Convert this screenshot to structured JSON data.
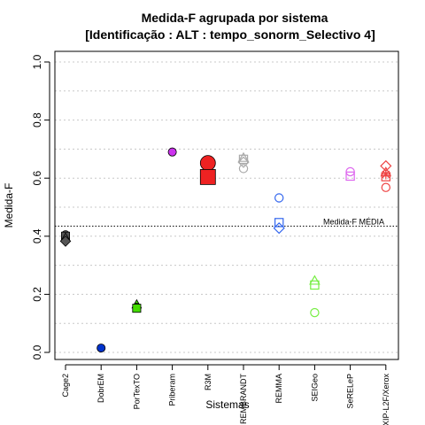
{
  "chart_data": {
    "type": "scatter",
    "title": "Medida-F agrupada por sistema",
    "subtitle": "[Identificação : ALT : tempo_sonorm_Selectivo 4]",
    "xlabel": "Sistemas",
    "ylabel": "Medida-F",
    "ylim": [
      0,
      1
    ],
    "yticks": [
      "0.0",
      "0.2",
      "0.4",
      "0.6",
      "0.8",
      "1.0"
    ],
    "grid": "horizontal dotted",
    "categories": [
      "Cage2",
      "DobrEM",
      "PorTexTO",
      "Priberam",
      "R3M",
      "REMBRANDT",
      "REMMA",
      "SEIGeo",
      "SeRELeP",
      "XIP-L2F/Xerox"
    ],
    "reference_line": {
      "label": "Medida-F MÉDIA",
      "value": 0.435
    },
    "series": [
      {
        "category": "Cage2",
        "color": "#555555",
        "points": [
          {
            "shape": "circle",
            "filled": true,
            "y": 0.405
          },
          {
            "shape": "square",
            "filled": true,
            "y": 0.4
          },
          {
            "shape": "triangle",
            "filled": true,
            "y": 0.395
          },
          {
            "shape": "diamond",
            "filled": true,
            "y": 0.383
          }
        ]
      },
      {
        "category": "DobrEM",
        "color": "#0033cc",
        "points": [
          {
            "shape": "circle",
            "filled": true,
            "y": 0.015
          }
        ]
      },
      {
        "category": "PorTexTO",
        "color": "#44dd00",
        "points": [
          {
            "shape": "triangle",
            "filled": true,
            "y": 0.165
          },
          {
            "shape": "circle",
            "filled": true,
            "y": 0.155
          },
          {
            "shape": "square",
            "filled": true,
            "y": 0.152
          }
        ]
      },
      {
        "category": "Priberam",
        "color": "#cc33ee",
        "points": [
          {
            "shape": "circle",
            "filled": true,
            "y": 0.69
          }
        ]
      },
      {
        "category": "R3M",
        "color": "#ee2222",
        "points": [
          {
            "shape": "circle",
            "filled": true,
            "big": true,
            "y": 0.652
          },
          {
            "shape": "square",
            "filled": true,
            "big": true,
            "y": 0.604
          }
        ]
      },
      {
        "category": "REMBRANDT",
        "color": "#aaaaaa",
        "points": [
          {
            "shape": "triangle",
            "filled": false,
            "y": 0.67
          },
          {
            "shape": "square",
            "filled": false,
            "y": 0.665
          },
          {
            "shape": "diamond",
            "filled": false,
            "y": 0.655
          },
          {
            "shape": "circle",
            "filled": false,
            "y": 0.633
          }
        ]
      },
      {
        "category": "REMMA",
        "color": "#3366ee",
        "points": [
          {
            "shape": "circle",
            "filled": false,
            "y": 0.532
          },
          {
            "shape": "square",
            "filled": false,
            "y": 0.447
          },
          {
            "shape": "diamond",
            "filled": false,
            "y": 0.428
          }
        ]
      },
      {
        "category": "SEIGeo",
        "color": "#77ee44",
        "points": [
          {
            "shape": "triangle",
            "filled": false,
            "y": 0.247
          },
          {
            "shape": "square",
            "filled": false,
            "y": 0.232
          },
          {
            "shape": "circle",
            "filled": false,
            "y": 0.137
          }
        ]
      },
      {
        "category": "SeRELeP",
        "color": "#dd66ee",
        "points": [
          {
            "shape": "circle",
            "filled": false,
            "y": 0.622
          },
          {
            "shape": "square",
            "filled": false,
            "y": 0.607
          }
        ]
      },
      {
        "category": "XIP-L2F/Xerox",
        "color": "#ee4444",
        "points": [
          {
            "shape": "diamond",
            "filled": false,
            "y": 0.642
          },
          {
            "shape": "triangle",
            "filled": false,
            "y": 0.62
          },
          {
            "shape": "star",
            "filled": false,
            "y": 0.613
          },
          {
            "shape": "square",
            "filled": false,
            "y": 0.605
          },
          {
            "shape": "circle",
            "filled": false,
            "y": 0.568
          }
        ]
      }
    ]
  }
}
